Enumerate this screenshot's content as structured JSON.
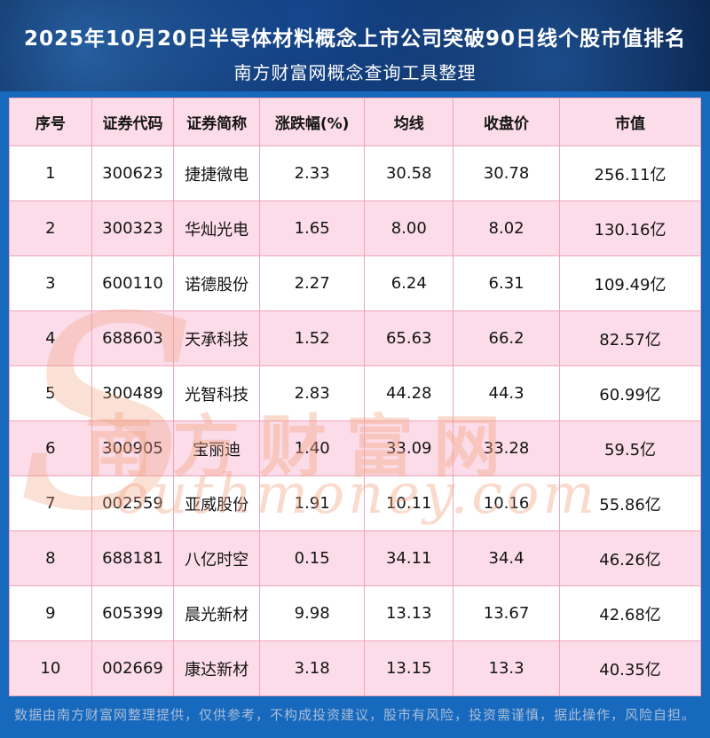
{
  "header": {
    "title_line1": "2025年10月20日半导体材料概念上市公司突破90日线个股市值排名",
    "title_line2": "南方财富网概念查询工具整理"
  },
  "chart_data": {
    "type": "table",
    "title": "2025年10月20日半导体材料概念上市公司突破90日线个股市值排名",
    "subtitle": "南方财富网概念查询工具整理",
    "columns": [
      "序号",
      "证券代码",
      "证券简称",
      "涨跌幅(%)",
      "均线",
      "收盘价",
      "市值"
    ],
    "rows": [
      [
        "1",
        "300623",
        "捷捷微电",
        "2.33",
        "30.58",
        "30.78",
        "256.11亿"
      ],
      [
        "2",
        "300323",
        "华灿光电",
        "1.65",
        "8.00",
        "8.02",
        "130.16亿"
      ],
      [
        "3",
        "600110",
        "诺德股份",
        "2.27",
        "6.24",
        "6.31",
        "109.49亿"
      ],
      [
        "4",
        "688603",
        "天承科技",
        "1.52",
        "65.63",
        "66.2",
        "82.57亿"
      ],
      [
        "5",
        "300489",
        "光智科技",
        "2.83",
        "44.28",
        "44.3",
        "60.99亿"
      ],
      [
        "6",
        "300905",
        "宝丽迪",
        "1.40",
        "33.09",
        "33.28",
        "59.5亿"
      ],
      [
        "7",
        "002559",
        "亚威股份",
        "1.91",
        "10.11",
        "10.16",
        "55.86亿"
      ],
      [
        "8",
        "688181",
        "八亿时空",
        "0.15",
        "34.11",
        "34.4",
        "46.26亿"
      ],
      [
        "9",
        "605399",
        "晨光新材",
        "9.98",
        "13.13",
        "13.67",
        "42.68亿"
      ],
      [
        "10",
        "002669",
        "康达新材",
        "3.18",
        "13.15",
        "13.3",
        "40.35亿"
      ]
    ],
    "column_widths_pct": [
      11.9,
      11.9,
      12.4,
      15.2,
      12.8,
      15.4,
      20.4
    ]
  },
  "watermark": {
    "initial": "S",
    "cn": "南方财富网",
    "en": "outhmoney.com"
  },
  "footer": {
    "disclaimer": "数据由南方财富网整理提供，仅供参考，不构成投资建议，股市有风险，投资需谨慎，据此操作，风险自担。"
  },
  "colors": {
    "page_background": "#1769bd",
    "banner_background": "#0b2a58",
    "table_border": "#f0a4bc",
    "row_pink": "#fbdce8",
    "row_white": "#ffffff",
    "title_text": "#ffffff",
    "cell_text": "#141414",
    "watermark": "#f4a988",
    "footer_text": "#a9bdd8"
  }
}
